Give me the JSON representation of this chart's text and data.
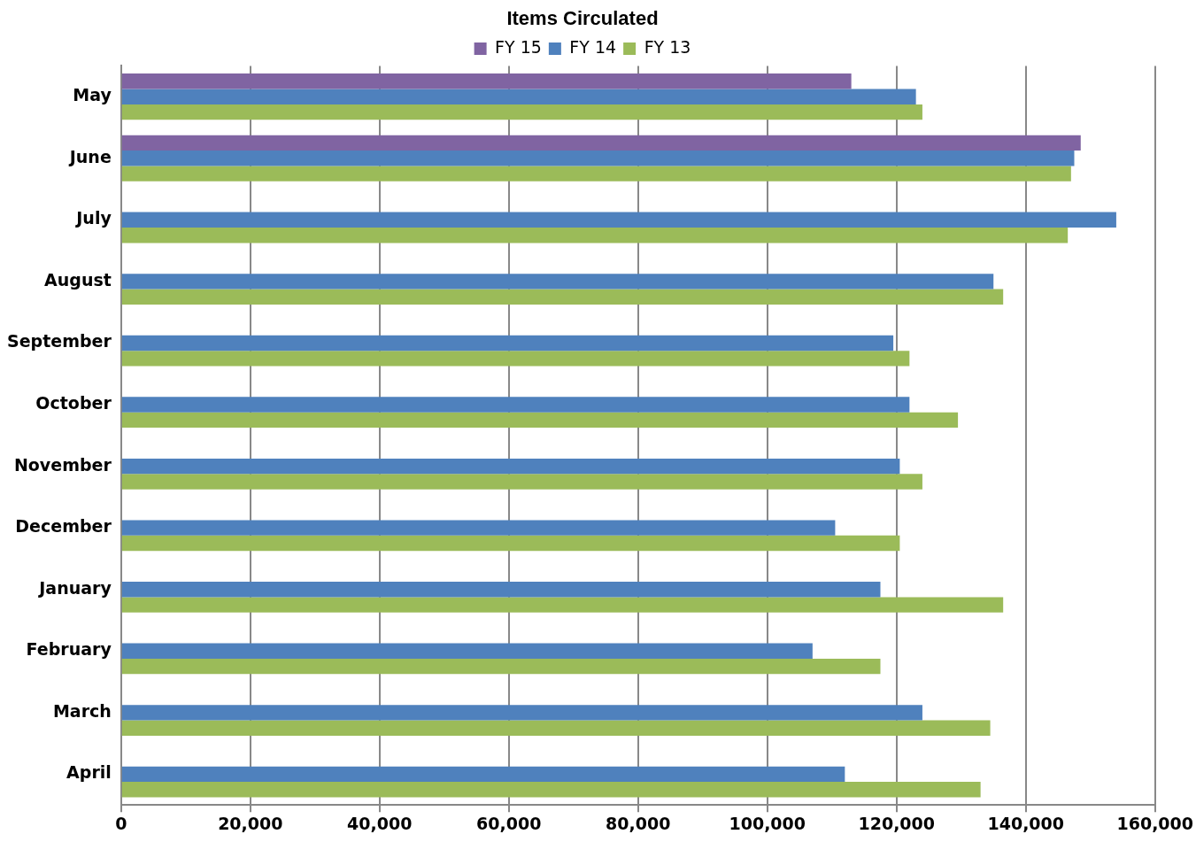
{
  "chart_data": {
    "type": "bar",
    "orientation": "horizontal",
    "title": "Items Circulated",
    "categories": [
      "May",
      "June",
      "July",
      "August",
      "September",
      "October",
      "November",
      "December",
      "January",
      "February",
      "March",
      "April"
    ],
    "series": [
      {
        "name": "FY 15",
        "color": "#8064a2",
        "values": [
          113000,
          148500,
          0,
          0,
          0,
          0,
          0,
          0,
          0,
          0,
          0,
          0
        ]
      },
      {
        "name": "FY 14",
        "color": "#4f81bd",
        "values": [
          123000,
          147500,
          154000,
          135000,
          119500,
          122000,
          120500,
          110500,
          117500,
          107000,
          124000,
          112000
        ]
      },
      {
        "name": "FY 13",
        "color": "#9bbb59",
        "values": [
          124000,
          147000,
          146500,
          136500,
          122000,
          129500,
          124000,
          120500,
          136500,
          117500,
          134500,
          133000
        ]
      }
    ],
    "xlim": [
      0,
      160000
    ],
    "xticks": [
      0,
      {
        "value": 20000,
        "label": "20,000"
      },
      {
        "value": 40000,
        "label": "40,000"
      },
      {
        "value": 60000,
        "label": "60,000"
      },
      {
        "value": 80000,
        "label": "80,000"
      },
      {
        "value": 100000,
        "label": "100,000"
      },
      {
        "value": 120000,
        "label": "120,000"
      },
      {
        "value": 140000,
        "label": "140,000"
      },
      {
        "value": 160000,
        "label": "160,000"
      }
    ],
    "grid": "x",
    "legend": "top"
  }
}
